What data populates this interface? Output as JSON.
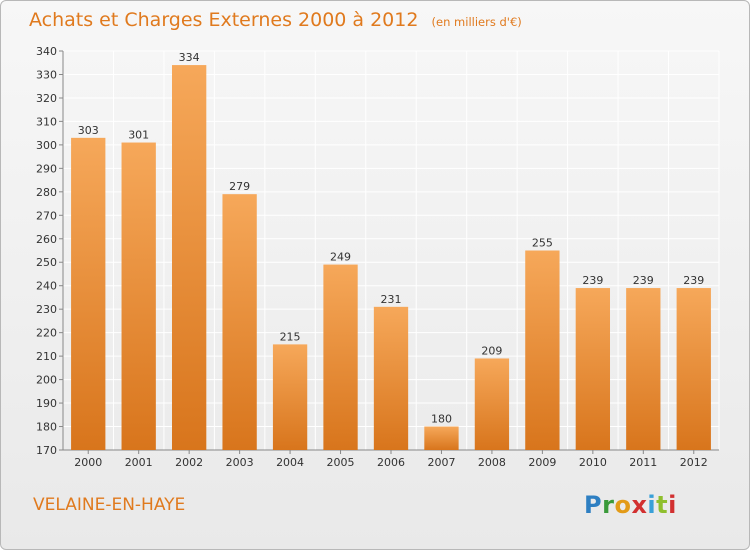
{
  "header": {
    "title": "Achats et Charges Externes 2000 à 2012",
    "unit": "(en milliers d'€)"
  },
  "footer": {
    "town": "VELAINE-EN-HAYE",
    "logo": "Proxiti"
  },
  "colors": {
    "accent": "#e07a1e",
    "bar_top": "#f6a85a",
    "bar_bottom": "#d8751c",
    "grid": "#ffffff",
    "text": "#333333"
  },
  "chart_data": {
    "type": "bar",
    "categories": [
      "2000",
      "2001",
      "2002",
      "2003",
      "2004",
      "2005",
      "2006",
      "2007",
      "2008",
      "2009",
      "2010",
      "2011",
      "2012"
    ],
    "values": [
      303,
      301,
      334,
      279,
      215,
      249,
      231,
      180,
      209,
      255,
      239,
      239,
      239
    ],
    "ylim": [
      170,
      340
    ],
    "yticks": [
      170,
      180,
      190,
      200,
      210,
      220,
      230,
      240,
      250,
      260,
      270,
      280,
      290,
      300,
      310,
      320,
      330,
      340
    ],
    "grid": true,
    "data_labels": true
  }
}
